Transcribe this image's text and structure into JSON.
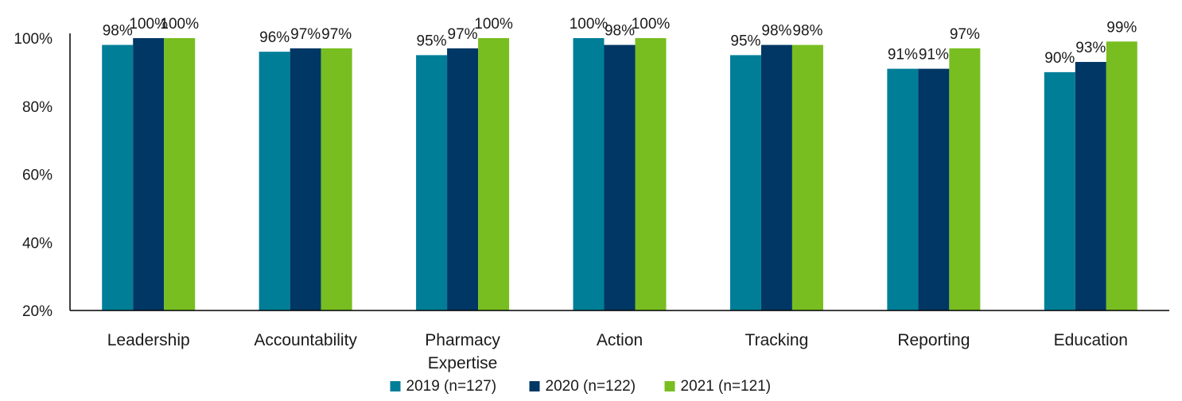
{
  "chart_data": {
    "type": "bar",
    "categories": [
      [
        "Leadership"
      ],
      [
        "Accountability"
      ],
      [
        "Pharmacy",
        "Expertise"
      ],
      [
        "Action"
      ],
      [
        "Tracking"
      ],
      [
        "Reporting"
      ],
      [
        "Education"
      ]
    ],
    "series": [
      {
        "name": "2019 (n=127)",
        "color": "#007E98",
        "values": [
          98,
          96,
          95,
          100,
          95,
          91,
          90
        ],
        "labels": [
          "98%",
          "96%",
          "95%",
          "100%",
          "95%",
          "91%",
          "90%"
        ]
      },
      {
        "name": "2020 (n=122)",
        "color": "#003764",
        "values": [
          100,
          97,
          97,
          98,
          98,
          91,
          93
        ],
        "labels": [
          "100%",
          "97%",
          "97%",
          "98%",
          "98%",
          "91%",
          "93%"
        ]
      },
      {
        "name": "2021 (n=121)",
        "color": "#78BE20",
        "values": [
          100,
          97,
          100,
          100,
          98,
          97,
          99
        ],
        "labels": [
          "100%",
          "97%",
          "100%",
          "100%",
          "98%",
          "97%",
          "99%"
        ]
      }
    ],
    "yticks": [
      20,
      40,
      60,
      80,
      100
    ],
    "ytick_labels": [
      "20%",
      "40%",
      "60%",
      "80%",
      "100%"
    ],
    "ylim": [
      20,
      100
    ],
    "grid": false,
    "legend_position": "bottom-center",
    "title": "",
    "xlabel": "",
    "ylabel": ""
  }
}
